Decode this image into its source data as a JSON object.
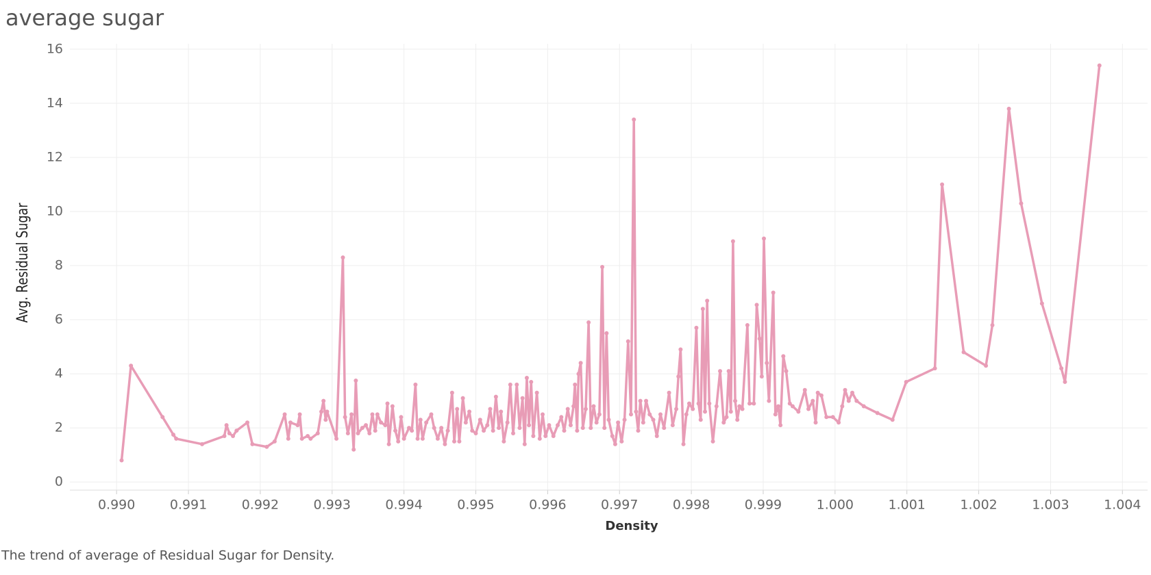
{
  "chart_data": {
    "type": "line",
    "title": "average sugar",
    "caption": "The trend of average of Residual Sugar for Density.",
    "xlabel": "Density",
    "ylabel": "Avg. Residual Sugar",
    "grid": true,
    "xlim": [
      0.98935,
      1.00435
    ],
    "ylim": [
      -0.3,
      16.2
    ],
    "xticks": [
      {
        "value": 0.99,
        "label": "0.990"
      },
      {
        "value": 0.991,
        "label": "0.991"
      },
      {
        "value": 0.992,
        "label": "0.992"
      },
      {
        "value": 0.993,
        "label": "0.993"
      },
      {
        "value": 0.994,
        "label": "0.994"
      },
      {
        "value": 0.995,
        "label": "0.995"
      },
      {
        "value": 0.996,
        "label": "0.996"
      },
      {
        "value": 0.997,
        "label": "0.997"
      },
      {
        "value": 0.998,
        "label": "0.998"
      },
      {
        "value": 0.999,
        "label": "0.999"
      },
      {
        "value": 1.0,
        "label": "1.000"
      },
      {
        "value": 1.001,
        "label": "1.001"
      },
      {
        "value": 1.002,
        "label": "1.002"
      },
      {
        "value": 1.003,
        "label": "1.003"
      },
      {
        "value": 1.004,
        "label": "1.004"
      }
    ],
    "yticks": [
      0,
      2,
      4,
      6,
      8,
      10,
      12,
      14,
      16
    ],
    "x": [
      0.99007,
      0.9902,
      0.99064,
      0.99079,
      0.99083,
      0.99119,
      0.9915,
      0.99153,
      0.99157,
      0.99162,
      0.99167,
      0.99182,
      0.99189,
      0.99209,
      0.9922,
      0.99234,
      0.99239,
      0.99242,
      0.99252,
      0.99255,
      0.99258,
      0.99266,
      0.9927,
      0.9928,
      0.99285,
      0.99288,
      0.99291,
      0.99293,
      0.99306,
      0.99315,
      0.99318,
      0.99322,
      0.99327,
      0.9933,
      0.99333,
      0.99336,
      0.99342,
      0.99347,
      0.99352,
      0.99356,
      0.9936,
      0.99363,
      0.99368,
      0.99374,
      0.99377,
      0.99379,
      0.99384,
      0.99388,
      0.99392,
      0.99396,
      0.994,
      0.99407,
      0.99411,
      0.99416,
      0.99419,
      0.99423,
      0.99426,
      0.99431,
      0.99438,
      0.99442,
      0.99447,
      0.99452,
      0.99457,
      0.99461,
      0.99467,
      0.9947,
      0.99474,
      0.99477,
      0.99482,
      0.99486,
      0.99491,
      0.99495,
      0.995,
      0.99506,
      0.99511,
      0.99516,
      0.9952,
      0.99524,
      0.99528,
      0.99532,
      0.99535,
      0.99539,
      0.99544,
      0.99548,
      0.99552,
      0.99557,
      0.99561,
      0.99565,
      0.99568,
      0.99571,
      0.99574,
      0.99577,
      0.9958,
      0.99585,
      0.99589,
      0.99593,
      0.99597,
      0.99602,
      0.99608,
      0.99614,
      0.99619,
      0.99623,
      0.99628,
      0.99632,
      0.99636,
      0.99638,
      0.99641,
      0.99643,
      0.99646,
      0.99649,
      0.99653,
      0.99657,
      0.9966,
      0.99664,
      0.99668,
      0.99672,
      0.99676,
      0.99679,
      0.99682,
      0.99685,
      0.9969,
      0.99694,
      0.99698,
      0.99703,
      0.99707,
      0.99712,
      0.99716,
      0.9972,
      0.99723,
      0.99726,
      0.99729,
      0.99733,
      0.99737,
      0.99742,
      0.99747,
      0.99752,
      0.99757,
      0.99762,
      0.99769,
      0.99774,
      0.99779,
      0.99782,
      0.99785,
      0.99789,
      0.99793,
      0.99797,
      0.99802,
      0.99807,
      0.9981,
      0.99813,
      0.99816,
      0.99819,
      0.99822,
      0.99825,
      0.9983,
      0.99835,
      0.9984,
      0.99845,
      0.99849,
      0.99852,
      0.99855,
      0.99858,
      0.99861,
      0.99864,
      0.99867,
      0.99871,
      0.99878,
      0.99881,
      0.99887,
      0.99891,
      0.99895,
      0.99898,
      0.99901,
      0.99905,
      0.99908,
      0.99914,
      0.99917,
      0.99921,
      0.99924,
      0.99928,
      0.99932,
      0.99937,
      0.99941,
      0.99949,
      0.99958,
      0.99963,
      0.99969,
      0.99973,
      0.99976,
      0.99981,
      0.99988,
      0.99997,
      1.00005,
      1.0001,
      1.00014,
      1.00019,
      1.00024,
      1.0003,
      1.0004,
      1.00059,
      1.0008,
      1.00099,
      1.00139,
      1.00149,
      1.00179,
      1.0021,
      1.00219,
      1.00242,
      1.00259,
      1.00288,
      1.00315,
      1.0032,
      1.00368
    ],
    "series": [
      {
        "name": "Avg. Residual Sugar",
        "color": "#e89cb6",
        "values": [
          0.8,
          4.3,
          2.4,
          1.75,
          1.6,
          1.4,
          1.7,
          2.1,
          1.8,
          1.7,
          1.9,
          2.2,
          1.4,
          1.3,
          1.5,
          2.5,
          1.6,
          2.2,
          2.1,
          2.5,
          1.6,
          1.7,
          1.6,
          1.8,
          2.6,
          3.0,
          2.3,
          2.6,
          1.6,
          8.3,
          2.4,
          1.8,
          2.5,
          1.2,
          3.75,
          1.8,
          2.0,
          2.1,
          1.8,
          2.5,
          1.9,
          2.5,
          2.2,
          2.1,
          2.9,
          1.4,
          2.8,
          1.9,
          1.5,
          2.4,
          1.6,
          2.0,
          1.9,
          3.6,
          1.6,
          2.3,
          1.6,
          2.2,
          2.5,
          2.0,
          1.6,
          2.0,
          1.4,
          1.9,
          3.3,
          1.5,
          2.7,
          1.5,
          3.1,
          2.2,
          2.6,
          1.9,
          1.8,
          2.3,
          1.9,
          2.1,
          2.7,
          1.9,
          3.15,
          2.0,
          2.6,
          1.5,
          2.2,
          3.6,
          1.8,
          3.6,
          2.0,
          3.1,
          1.4,
          3.85,
          2.1,
          3.7,
          1.7,
          3.3,
          1.6,
          2.5,
          1.7,
          2.1,
          1.7,
          2.1,
          2.4,
          1.9,
          2.7,
          2.1,
          2.8,
          3.6,
          1.9,
          4.0,
          4.4,
          2.0,
          2.7,
          5.9,
          2.0,
          2.8,
          2.2,
          2.5,
          7.95,
          2.0,
          5.5,
          2.3,
          1.7,
          1.4,
          2.2,
          1.5,
          2.3,
          5.2,
          2.5,
          13.4,
          2.6,
          1.9,
          3.0,
          2.2,
          3.0,
          2.5,
          2.3,
          1.7,
          2.5,
          2.0,
          3.3,
          2.1,
          2.7,
          3.9,
          4.9,
          1.4,
          2.5,
          2.9,
          2.7,
          5.7,
          2.9,
          2.3,
          6.4,
          2.6,
          6.7,
          2.9,
          1.5,
          2.8,
          4.1,
          2.2,
          2.4,
          4.1,
          2.6,
          8.9,
          3.0,
          2.3,
          2.8,
          2.7,
          5.8,
          2.9,
          2.9,
          6.55,
          5.3,
          3.9,
          9.0,
          4.4,
          3.0,
          7.0,
          2.5,
          2.8,
          2.1,
          4.65,
          4.1,
          2.9,
          2.8,
          2.6,
          3.4,
          2.7,
          3.0,
          2.2,
          3.3,
          3.2,
          2.4,
          2.4,
          2.2,
          2.8,
          3.4,
          3.0,
          3.3,
          3.0,
          2.8,
          2.55,
          2.3,
          3.7,
          4.2,
          11.0,
          4.8,
          4.3,
          5.8,
          13.8,
          10.3,
          6.6,
          4.2,
          3.7,
          15.4
        ]
      }
    ]
  }
}
